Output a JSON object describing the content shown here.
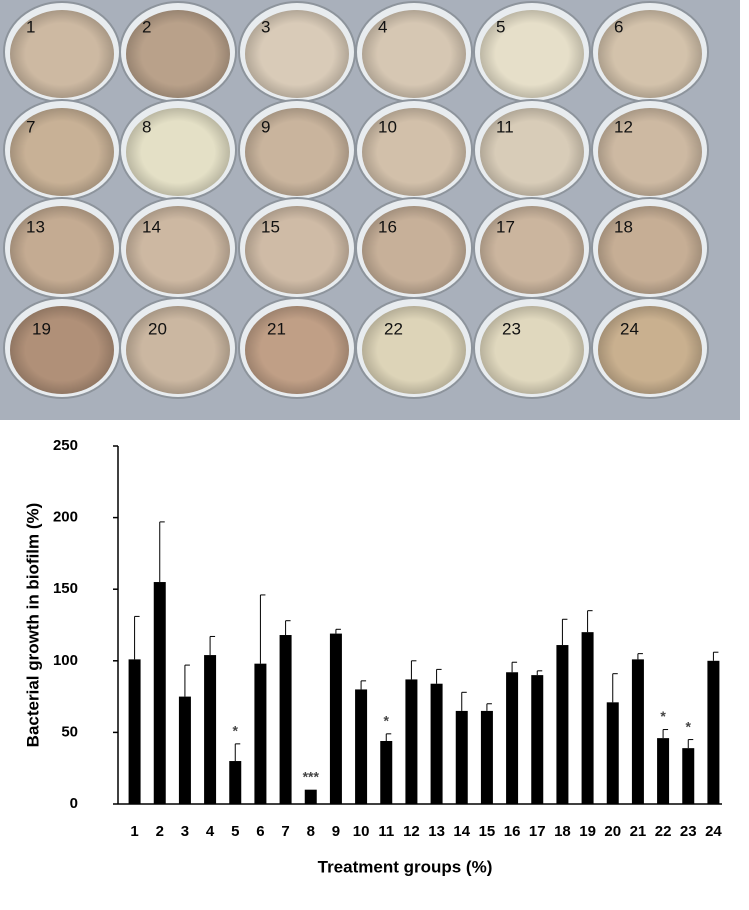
{
  "chart_data": {
    "type": "bar",
    "categories": [
      "1",
      "2",
      "3",
      "4",
      "5",
      "6",
      "7",
      "8",
      "9",
      "10",
      "11",
      "12",
      "13",
      "14",
      "15",
      "16",
      "17",
      "18",
      "19",
      "20",
      "21",
      "22",
      "23",
      "24"
    ],
    "values": [
      101,
      155,
      75,
      104,
      30,
      98,
      118,
      10,
      119,
      80,
      44,
      87,
      84,
      65,
      65,
      92,
      90,
      111,
      120,
      71,
      101,
      46,
      39,
      100
    ],
    "errors": [
      30,
      42,
      22,
      13,
      12,
      48,
      10,
      0,
      3,
      6,
      5,
      13,
      10,
      13,
      5,
      7,
      3,
      18,
      15,
      20,
      4,
      6,
      6,
      6
    ],
    "significance": [
      null,
      null,
      null,
      null,
      "*",
      null,
      null,
      "***",
      null,
      null,
      "*",
      null,
      null,
      null,
      null,
      null,
      null,
      null,
      null,
      null,
      null,
      "*",
      "*",
      null
    ],
    "color": "#000000",
    "ylim": [
      0,
      250
    ],
    "yticks": [
      0,
      50,
      100,
      150,
      200,
      250
    ],
    "ylabel": "Bacterial growth in biofilm (%)",
    "xlabel": "Treatment groups (%)",
    "grid": false
  }
}
